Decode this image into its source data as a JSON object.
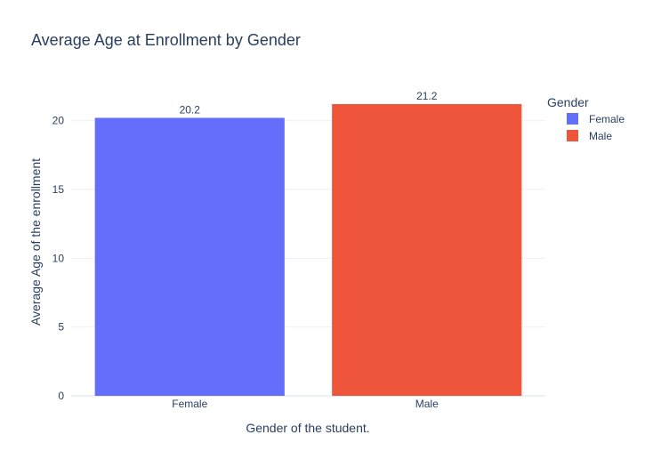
{
  "chart_data": {
    "type": "bar",
    "title": "Average Age at Enrollment by Gender",
    "xlabel": "Gender of the student.",
    "ylabel": "Average Age of the enrollment",
    "categories": [
      "Female",
      "Male"
    ],
    "values": [
      20.2,
      21.2
    ],
    "data_labels": [
      "20.2",
      "21.2"
    ],
    "colors": [
      "#636efa",
      "#ef553b"
    ],
    "ylim": [
      0,
      22.3
    ],
    "yticks": [
      0,
      5,
      10,
      15,
      20
    ],
    "grid": true,
    "legend": {
      "title": "Gender",
      "placement": "top-right",
      "entries": [
        "Female",
        "Male"
      ]
    }
  }
}
